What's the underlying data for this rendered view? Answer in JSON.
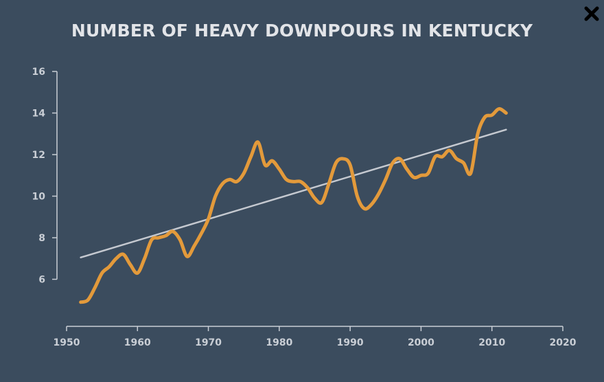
{
  "close_icon": "close-icon",
  "colors": {
    "background": "#3b4c5e",
    "series": "#e39a3b",
    "trend": "#c5c9d0",
    "axis": "#c9ced5"
  },
  "chart_data": {
    "type": "line",
    "title": "NUMBER OF HEAVY DOWNPOURS IN KENTUCKY",
    "xlabel": "",
    "ylabel": "",
    "xlim": [
      1950,
      2020
    ],
    "ylim": [
      4,
      16
    ],
    "xticks": [
      1950,
      1960,
      1970,
      1980,
      1990,
      2000,
      2010,
      2020
    ],
    "yticks": [
      6,
      8,
      10,
      12,
      14,
      16
    ],
    "grid": false,
    "series": [
      {
        "x": [
          1952,
          1953,
          1954,
          1955,
          1956,
          1957,
          1958,
          1959,
          1960,
          1961,
          1962,
          1963,
          1964,
          1965,
          1966,
          1967,
          1968,
          1969,
          1970,
          1971,
          1972,
          1973,
          1974,
          1975,
          1976,
          1977,
          1978,
          1979,
          1980,
          1981,
          1982,
          1983,
          1984,
          1985,
          1986,
          1987,
          1988,
          1989,
          1990,
          1991,
          1992,
          1993,
          1994,
          1995,
          1996,
          1997,
          1998,
          1999,
          2000,
          2001,
          2002,
          2003,
          2004,
          2005,
          2006,
          2007,
          2008,
          2009,
          2010,
          2011,
          2012
        ],
        "values": [
          4.9,
          5.0,
          5.6,
          6.3,
          6.6,
          7.0,
          7.2,
          6.7,
          6.3,
          7.0,
          7.9,
          8.0,
          8.1,
          8.3,
          7.9,
          7.1,
          7.6,
          8.2,
          8.9,
          10.0,
          10.6,
          10.8,
          10.7,
          11.1,
          11.9,
          12.6,
          11.5,
          11.7,
          11.3,
          10.8,
          10.7,
          10.7,
          10.4,
          9.9,
          9.7,
          10.6,
          11.6,
          11.8,
          11.5,
          10.0,
          9.4,
          9.6,
          10.1,
          10.8,
          11.6,
          11.8,
          11.3,
          10.9,
          11.0,
          11.1,
          11.9,
          11.9,
          12.2,
          11.8,
          11.6,
          11.1,
          13.0,
          13.8,
          13.9,
          14.2,
          14.0
        ]
      },
      {
        "x": [
          1952,
          2012
        ],
        "values": [
          7.05,
          13.2
        ]
      }
    ]
  }
}
